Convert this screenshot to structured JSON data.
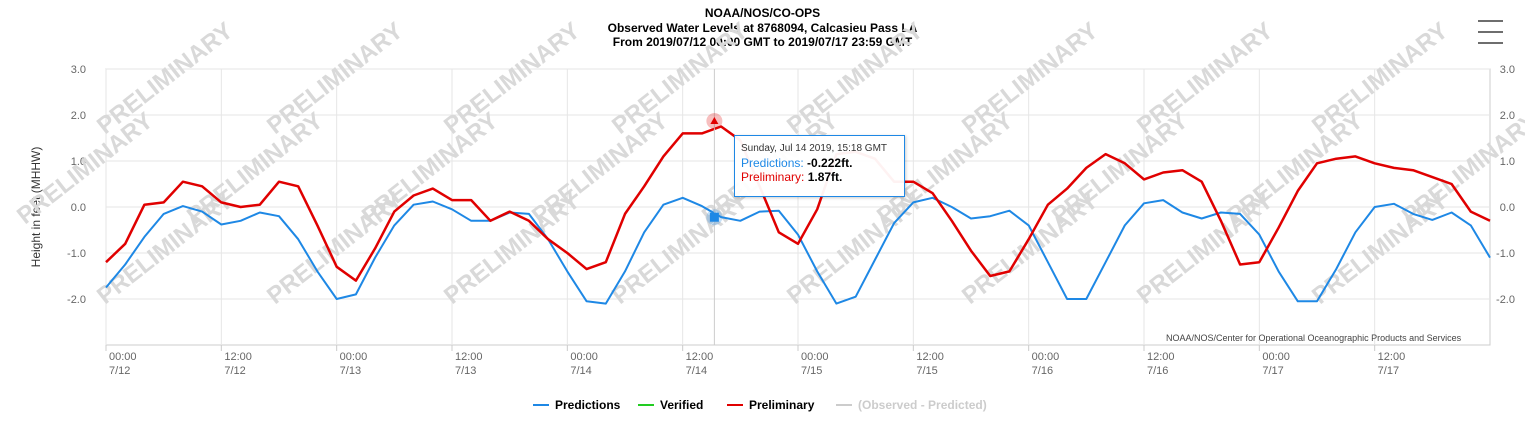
{
  "header": {
    "line1": "NOAA/NOS/CO-OPS",
    "line2": "Observed Water Levels at 8768094, Calcasieu Pass LA",
    "line3": "From 2019/07/12 00:00 GMT to 2019/07/17 23:59 GMT"
  },
  "watermark": "PRELIMINARY",
  "credit": "NOAA/NOS/Center for Operational Oceanographic Products and Services",
  "tooltip": {
    "date": "Sunday, Jul 14 2019, 15:18 GMT",
    "pred_label": "Predictions:",
    "pred_value": "-0.222ft.",
    "prelim_label": "Preliminary:",
    "prelim_value": "1.87ft."
  },
  "legend": {
    "predictions": "Predictions",
    "verified": "Verified",
    "preliminary": "Preliminary",
    "obs_pred": "(Observed - Predicted)"
  },
  "colors": {
    "predictions": "#1e88e5",
    "verified": "#22cc22",
    "preliminary": "#e00000",
    "obs_pred": "#cccccc"
  },
  "chart_data": {
    "type": "line",
    "title": "Observed Water Levels at 8768094, Calcasieu Pass LA",
    "ylabel": "Height in feet (MHHW)",
    "ylim": [
      -3.0,
      3.0
    ],
    "yticks": [
      "3.0",
      "2.0",
      "1.0",
      "0.0",
      "-1.0",
      "-2.0"
    ],
    "xlim_hours": [
      0,
      144
    ],
    "xticks": [
      {
        "time": "00:00",
        "date": "7/12"
      },
      {
        "time": "12:00",
        "date": "7/12"
      },
      {
        "time": "00:00",
        "date": "7/13"
      },
      {
        "time": "12:00",
        "date": "7/13"
      },
      {
        "time": "00:00",
        "date": "7/14"
      },
      {
        "time": "12:00",
        "date": "7/14"
      },
      {
        "time": "00:00",
        "date": "7/15"
      },
      {
        "time": "12:00",
        "date": "7/15"
      },
      {
        "time": "00:00",
        "date": "7/16"
      },
      {
        "time": "12:00",
        "date": "7/16"
      },
      {
        "time": "00:00",
        "date": "7/17"
      },
      {
        "time": "12:00",
        "date": "7/17"
      }
    ],
    "grid": true,
    "legend_position": "bottom",
    "marker": {
      "hour": 63.3,
      "prediction": -0.222,
      "preliminary": 1.87
    },
    "series": [
      {
        "name": "Predictions",
        "x": [
          0,
          2,
          4,
          6,
          8,
          10,
          12,
          14,
          16,
          18,
          20,
          22,
          24,
          26,
          28,
          30,
          32,
          34,
          36,
          38,
          40,
          42,
          44,
          46,
          48,
          50,
          52,
          54,
          56,
          58,
          60,
          62,
          64,
          66,
          68,
          70,
          72,
          74,
          76,
          78,
          80,
          82,
          84,
          86,
          88,
          90,
          92,
          94,
          96,
          98,
          100,
          102,
          104,
          106,
          108,
          110,
          112,
          114,
          116,
          118,
          120,
          122,
          124,
          126,
          128,
          130,
          132,
          134,
          136,
          138,
          140,
          142,
          144
        ],
        "values": [
          -1.75,
          -1.25,
          -0.65,
          -0.15,
          0.02,
          -0.1,
          -0.38,
          -0.3,
          -0.12,
          -0.2,
          -0.7,
          -1.4,
          -2.0,
          -1.9,
          -1.1,
          -0.4,
          0.05,
          0.12,
          -0.05,
          -0.3,
          -0.3,
          -0.12,
          -0.15,
          -0.7,
          -1.4,
          -2.05,
          -2.1,
          -1.4,
          -0.55,
          0.05,
          0.2,
          0.02,
          -0.22,
          -0.3,
          -0.1,
          -0.08,
          -0.6,
          -1.4,
          -2.1,
          -1.95,
          -1.15,
          -0.35,
          0.1,
          0.2,
          0.0,
          -0.25,
          -0.2,
          -0.08,
          -0.4,
          -1.2,
          -2.0,
          -2.0,
          -1.2,
          -0.4,
          0.08,
          0.15,
          -0.12,
          -0.25,
          -0.12,
          -0.15,
          -0.6,
          -1.4,
          -2.05,
          -2.05,
          -1.35,
          -0.55,
          0.0,
          0.07,
          -0.15,
          -0.28,
          -0.12,
          -0.4,
          -1.1
        ]
      },
      {
        "name": "Preliminary",
        "x": [
          0,
          2,
          4,
          6,
          8,
          10,
          12,
          14,
          16,
          18,
          20,
          22,
          24,
          26,
          28,
          30,
          32,
          34,
          36,
          38,
          40,
          42,
          44,
          46,
          48,
          50,
          52,
          54,
          56,
          58,
          60,
          62,
          64,
          66,
          68,
          70,
          72,
          74,
          76,
          78,
          80,
          82,
          84,
          86,
          88,
          90,
          92,
          94,
          96,
          98,
          100,
          102,
          104,
          106,
          108,
          110,
          112,
          114,
          116,
          118,
          120,
          122,
          124,
          126,
          128,
          130,
          132,
          134,
          136,
          138,
          140,
          142,
          144
        ],
        "values": [
          -1.2,
          -0.8,
          0.05,
          0.1,
          0.55,
          0.45,
          0.1,
          0.0,
          0.05,
          0.55,
          0.45,
          -0.4,
          -1.3,
          -1.6,
          -0.9,
          -0.1,
          0.25,
          0.4,
          0.15,
          0.15,
          -0.3,
          -0.1,
          -0.3,
          -0.7,
          -1.0,
          -1.35,
          -1.2,
          -0.15,
          0.45,
          1.1,
          1.6,
          1.6,
          1.75,
          1.45,
          0.45,
          -0.55,
          -0.8,
          -0.05,
          1.15,
          1.2,
          1.05,
          0.55,
          0.55,
          0.3,
          -0.3,
          -0.95,
          -1.5,
          -1.4,
          -0.7,
          0.05,
          0.4,
          0.85,
          1.15,
          0.95,
          0.6,
          0.75,
          0.8,
          0.55,
          -0.3,
          -1.25,
          -1.2,
          -0.45,
          0.35,
          0.95,
          1.05,
          1.1,
          0.95,
          0.85,
          0.8,
          0.65,
          0.5,
          -0.1,
          -0.3
        ]
      }
    ]
  }
}
